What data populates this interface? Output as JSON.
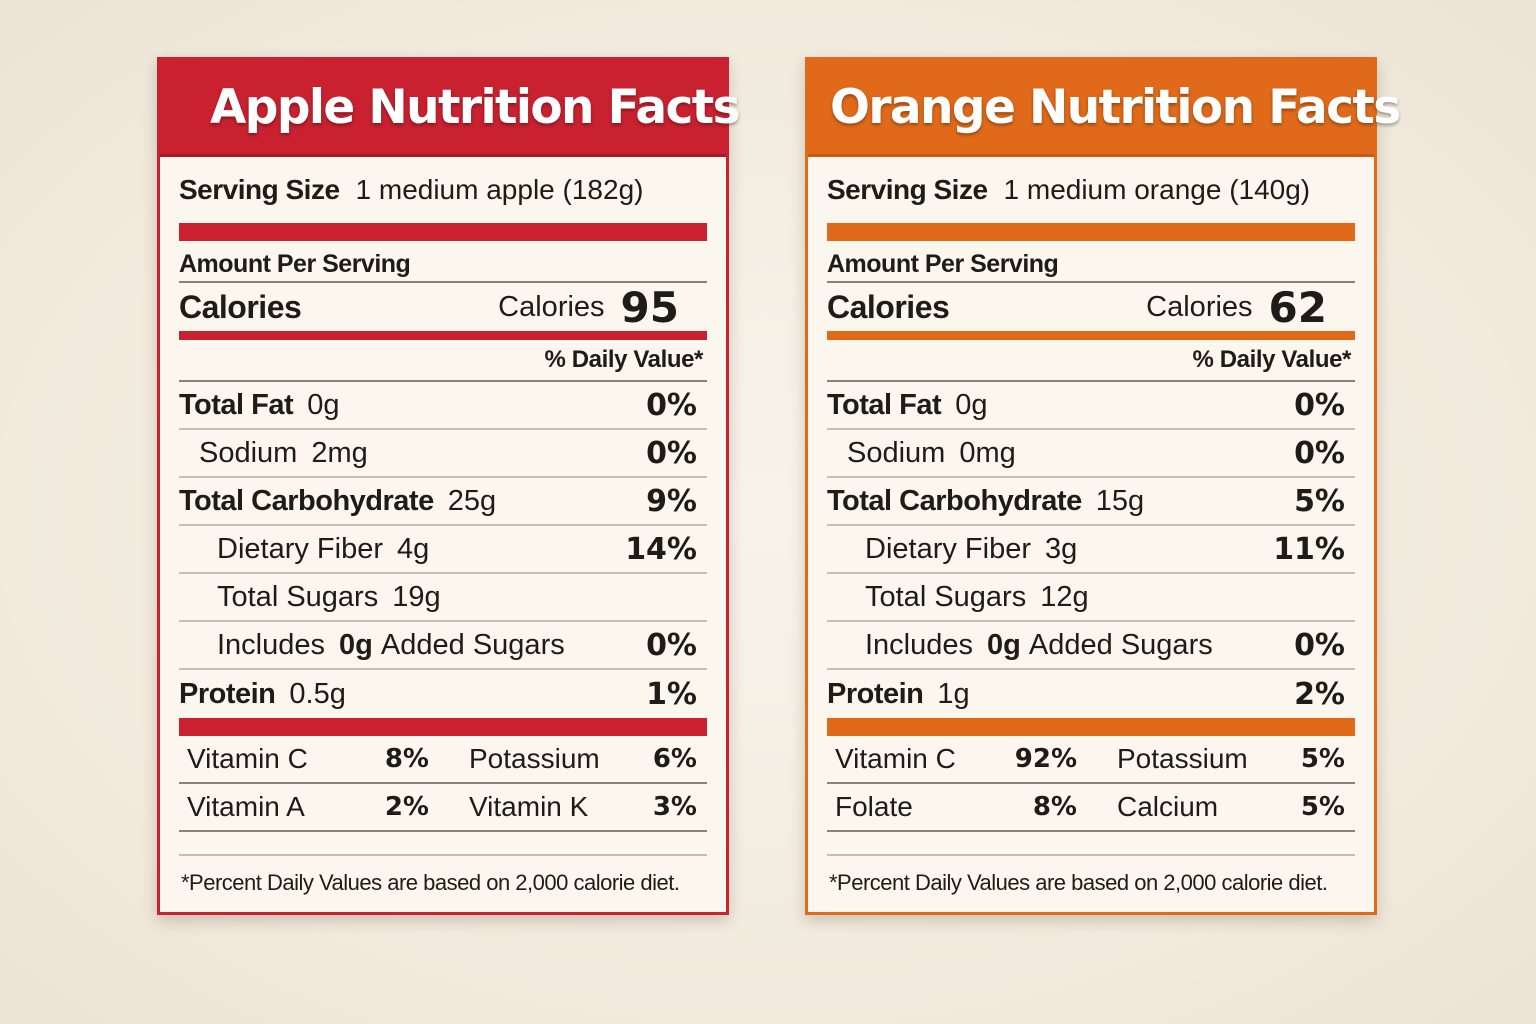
{
  "labels": {
    "apple": {
      "title": "Apple Nutrition Facts",
      "accent_color": "#c9212f",
      "serving_label": "Serving Size",
      "serving_value": "1 medium apple (182g)",
      "amount_per_serving": "Amount Per Serving",
      "calories_title": "Calories",
      "calories_word": "Calories",
      "calories_value": "95",
      "daily_value_header": "% Daily Value*",
      "nutrients": [
        {
          "name": "Total Fat",
          "amount": "0g",
          "pct": "0%"
        },
        {
          "name": "Sodium",
          "amount": "2mg",
          "pct": "0%"
        },
        {
          "name": "Total Carbohydrate",
          "amount": "25g",
          "pct": "9%"
        },
        {
          "name": "Dietary Fiber",
          "amount": "4g",
          "pct": "14%"
        },
        {
          "name": "Total Sugars",
          "amount": "19g",
          "pct": ""
        },
        {
          "name": "Includes",
          "amount": "0g",
          "suffix": "Added Sugars",
          "pct": "0%"
        },
        {
          "name": "Protein",
          "amount": "0.5g",
          "pct": "1%"
        }
      ],
      "vitamins": [
        {
          "name": "Vitamin C",
          "pct": "8%",
          "name2": "Potassium",
          "pct2": "6%"
        },
        {
          "name": "Vitamin A",
          "pct": "2%",
          "name2": "Vitamin K",
          "pct2": "3%"
        }
      ],
      "footnote": "*Percent Daily Values are based on 2,000 calorie diet."
    },
    "orange": {
      "title": "Orange Nutrition Facts",
      "accent_color": "#e06a1a",
      "serving_label": "Serving Size",
      "serving_value": "1 medium orange (140g)",
      "amount_per_serving": "Amount Per Serving",
      "calories_title": "Calories",
      "calories_word": "Calories",
      "calories_value": "62",
      "daily_value_header": "% Daily Value*",
      "nutrients": [
        {
          "name": "Total Fat",
          "amount": "0g",
          "pct": "0%"
        },
        {
          "name": "Sodium",
          "amount": "0mg",
          "pct": "0%"
        },
        {
          "name": "Total Carbohydrate",
          "amount": "15g",
          "pct": "5%"
        },
        {
          "name": "Dietary Fiber",
          "amount": "3g",
          "pct": "11%"
        },
        {
          "name": "Total Sugars",
          "amount": "12g",
          "pct": ""
        },
        {
          "name": "Includes",
          "amount": "0g",
          "suffix": "Added Sugars",
          "pct": "0%"
        },
        {
          "name": "Protein",
          "amount": "1g",
          "pct": "2%"
        }
      ],
      "vitamins": [
        {
          "name": "Vitamin C",
          "pct": "92%",
          "name2": "Potassium",
          "pct2": "5%"
        },
        {
          "name": "Folate",
          "pct": "8%",
          "name2": "Calcium",
          "pct2": "5%"
        }
      ],
      "footnote": "*Percent Daily Values are based on 2,000 calorie diet."
    }
  }
}
